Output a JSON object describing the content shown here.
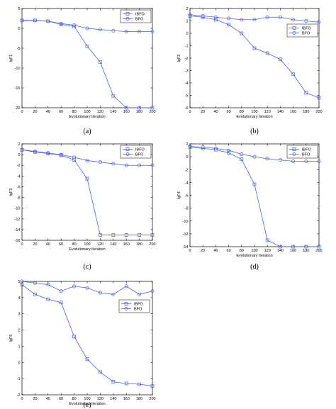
{
  "colors": {
    "ibfo": "#4a5ee8",
    "bfo": "#4a5ee8"
  },
  "chart_data": [
    {
      "type": "line",
      "panel_label": "(a)",
      "xlabel": "Evolutionary iteration",
      "ylabel": "lgF1",
      "x": [
        0,
        20,
        40,
        60,
        80,
        100,
        120,
        140,
        160,
        180,
        200
      ],
      "xlim": [
        0,
        200
      ],
      "ylim": [
        -20,
        5
      ],
      "xticks": [
        0,
        20,
        40,
        60,
        80,
        100,
        120,
        140,
        160,
        180,
        200
      ],
      "yticks": [
        -20,
        -15,
        -10,
        -5,
        0,
        5
      ],
      "legend": "top-right",
      "series": [
        {
          "name": "IBFO",
          "marker": "square",
          "values": [
            2,
            2,
            1.8,
            1,
            0.5,
            -4.5,
            -8.5,
            -17,
            -20,
            -20,
            -20
          ]
        },
        {
          "name": "BFO",
          "marker": "circle",
          "values": [
            2,
            2,
            1.8,
            1.2,
            0.8,
            0,
            -0.3,
            -0.6,
            -0.8,
            -0.8,
            -0.8
          ]
        }
      ]
    },
    {
      "type": "line",
      "panel_label": "(b)",
      "xlabel": "Evolutionary iteration",
      "ylabel": "lgF2",
      "x": [
        0,
        20,
        40,
        60,
        80,
        100,
        120,
        140,
        160,
        180,
        200
      ],
      "xlim": [
        0,
        200
      ],
      "ylim": [
        -6,
        2
      ],
      "xticks": [
        0,
        20,
        40,
        60,
        80,
        100,
        120,
        140,
        160,
        180,
        200
      ],
      "yticks": [
        -6,
        -5,
        -4,
        -3,
        -2,
        -1,
        0,
        1,
        2
      ],
      "legend": "top-right",
      "series": [
        {
          "name": "IBFO",
          "marker": "square",
          "values": [
            1.4,
            1.3,
            1.1,
            0.7,
            0,
            -1.2,
            -1.6,
            -2.1,
            -3.3,
            -4.8,
            -5.2
          ]
        },
        {
          "name": "BFO",
          "marker": "circle",
          "values": [
            1.5,
            1.4,
            1.3,
            1.2,
            1.1,
            1.1,
            1.3,
            1.3,
            1.1,
            1,
            0.9
          ]
        }
      ]
    },
    {
      "type": "line",
      "panel_label": "(c)",
      "xlabel": "Evolutionary iteration",
      "ylabel": "lgF3",
      "x": [
        0,
        20,
        40,
        60,
        80,
        100,
        120,
        140,
        160,
        180,
        200
      ],
      "xlim": [
        0,
        200
      ],
      "ylim": [
        -16,
        2
      ],
      "xticks": [
        0,
        20,
        40,
        60,
        80,
        100,
        120,
        140,
        160,
        180,
        200
      ],
      "yticks": [
        -16,
        -14,
        -12,
        -10,
        -8,
        -6,
        -4,
        -2,
        0,
        2
      ],
      "legend": "top-right",
      "series": [
        {
          "name": "IBFO",
          "marker": "square",
          "values": [
            0.9,
            0.5,
            0.2,
            -0.1,
            -1,
            -4.5,
            -15,
            -15,
            -15,
            -15,
            -15
          ]
        },
        {
          "name": "BFO",
          "marker": "circle",
          "values": [
            0.9,
            0.6,
            0.3,
            0,
            -0.5,
            -1.1,
            -1.4,
            -1.7,
            -2,
            -2,
            -2
          ]
        }
      ]
    },
    {
      "type": "line",
      "panel_label": "(d)",
      "xlabel": "Evolutionary iteration",
      "ylabel": "lgF4",
      "x": [
        0,
        20,
        40,
        60,
        80,
        100,
        120,
        140,
        160,
        180,
        200
      ],
      "xlim": [
        0,
        200
      ],
      "ylim": [
        -14,
        2
      ],
      "xticks": [
        0,
        20,
        40,
        60,
        80,
        100,
        120,
        140,
        160,
        180,
        200
      ],
      "yticks": [
        -14,
        -12,
        -10,
        -8,
        -6,
        -4,
        -2,
        0,
        2
      ],
      "legend": "top-right",
      "series": [
        {
          "name": "IBFO",
          "marker": "square",
          "values": [
            1.5,
            1.3,
            1.1,
            0.6,
            -0.4,
            -4.3,
            -13,
            -14,
            -14,
            -14,
            -14
          ]
        },
        {
          "name": "BFO",
          "marker": "circle",
          "values": [
            1.6,
            1.5,
            1.3,
            1,
            0.4,
            0,
            -0.3,
            -0.5,
            -0.7,
            -0.7,
            -0.7
          ]
        }
      ]
    },
    {
      "type": "line",
      "panel_label": "(e)",
      "xlabel": "Evolutionary iteration",
      "ylabel": "lgF5",
      "x": [
        0,
        20,
        40,
        60,
        80,
        100,
        120,
        140,
        160,
        180,
        200
      ],
      "xlim": [
        0,
        200
      ],
      "ylim": [
        -2,
        5
      ],
      "xticks": [
        0,
        20,
        40,
        60,
        80,
        100,
        120,
        140,
        160,
        180,
        200
      ],
      "yticks": [
        -2,
        -1,
        0,
        1,
        2,
        3,
        4,
        5
      ],
      "legend": "upper-right-inside",
      "series": [
        {
          "name": "IBFO",
          "marker": "square",
          "values": [
            4.8,
            4.2,
            3.9,
            3.7,
            1.6,
            0.2,
            -0.6,
            -1.2,
            -1.3,
            -1.35,
            -1.45
          ]
        },
        {
          "name": "BFO",
          "marker": "circle",
          "values": [
            5,
            4.9,
            4.8,
            4.4,
            4.7,
            4.6,
            4.3,
            4.2,
            4.7,
            4.2,
            4.4
          ]
        }
      ]
    }
  ]
}
